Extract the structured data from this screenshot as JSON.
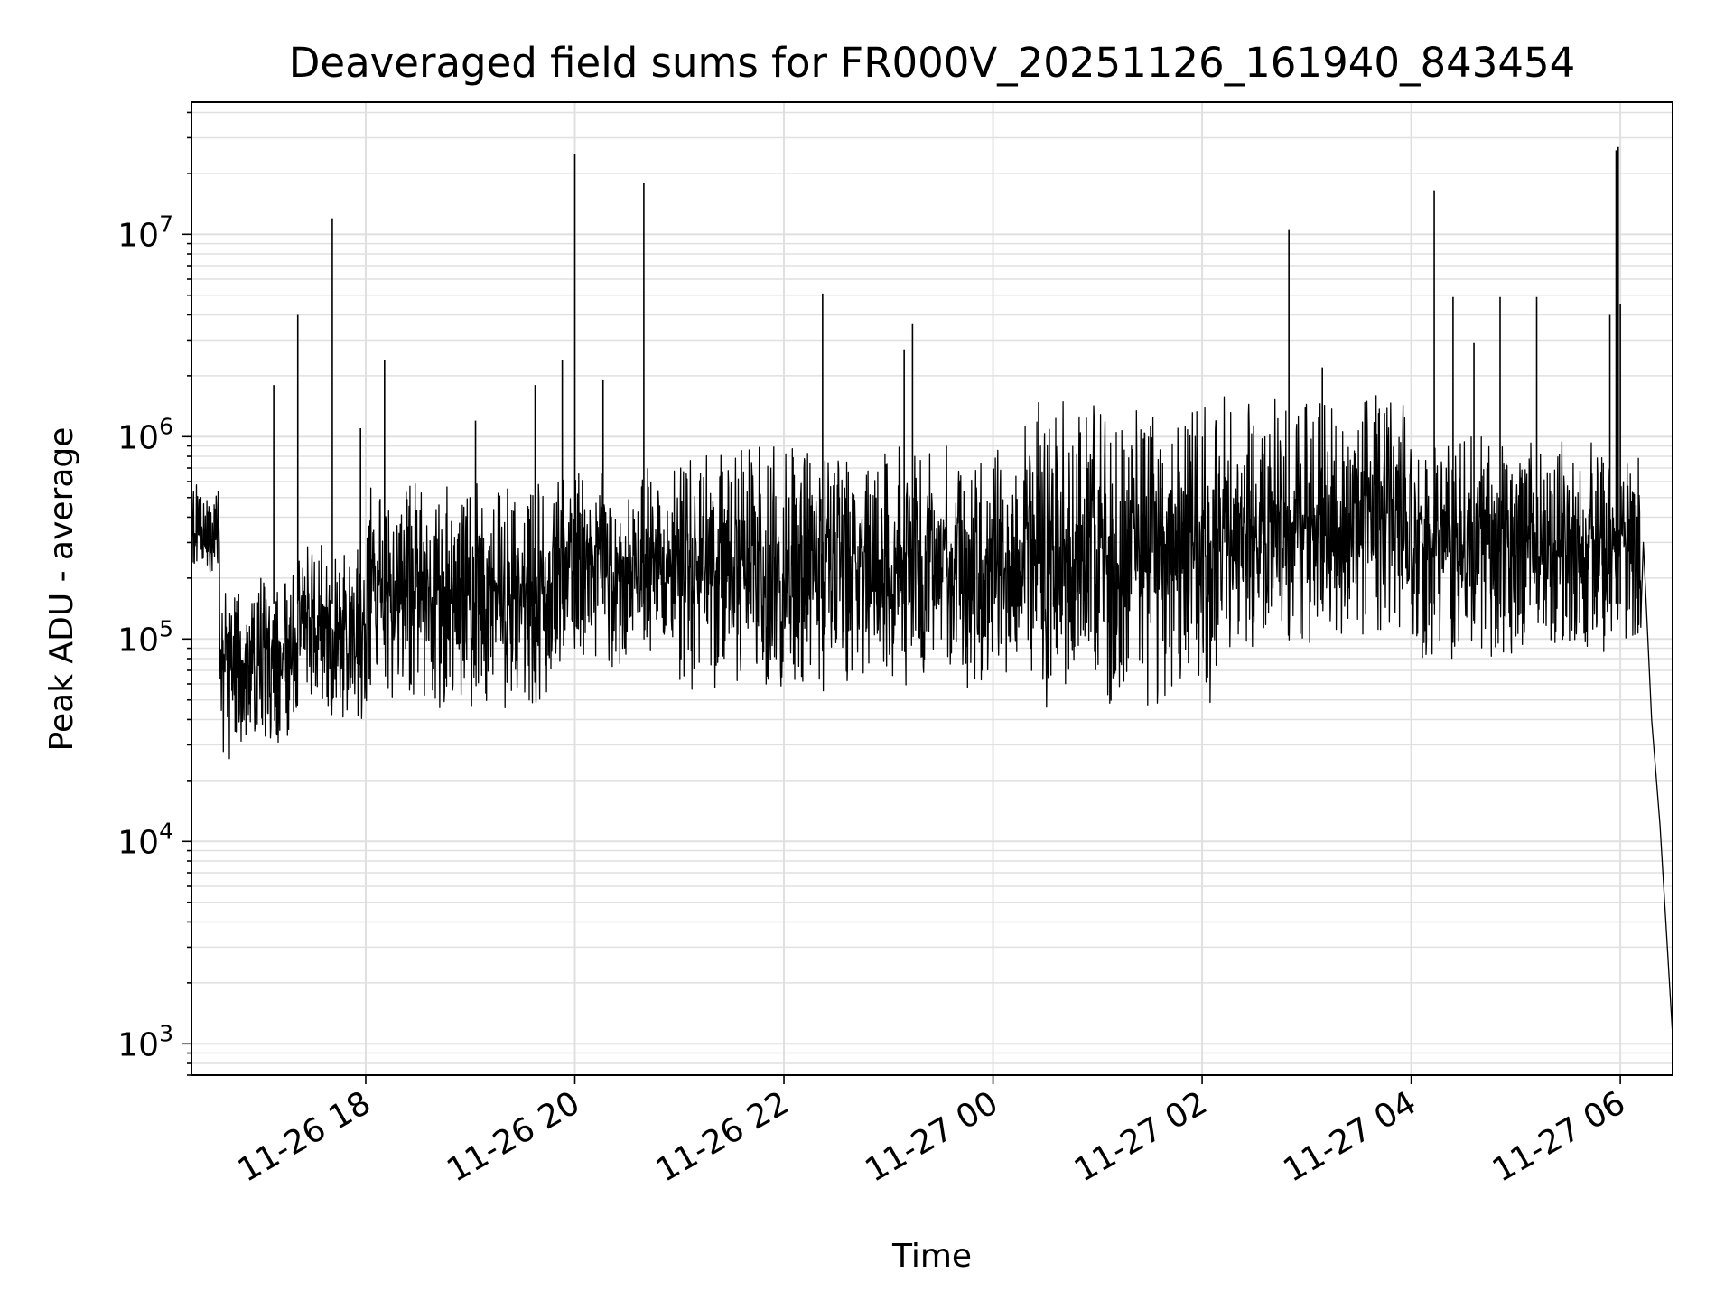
{
  "chart_data": {
    "type": "line",
    "title": "Deaveraged field sums for FR000V_20251126_161940_843454",
    "xlabel": "Time",
    "ylabel": "Peak ADU - average",
    "yscale": "log",
    "ylim": [
      700,
      45000000
    ],
    "xlim_hours": [
      16.333,
      30.5
    ],
    "grid": true,
    "line_color": "#000000",
    "x_ticks": [
      {
        "hour": 18,
        "label": "11-26 18"
      },
      {
        "hour": 20,
        "label": "11-26 20"
      },
      {
        "hour": 22,
        "label": "11-26 22"
      },
      {
        "hour": 24,
        "label": "11-27 00"
      },
      {
        "hour": 26,
        "label": "11-27 02"
      },
      {
        "hour": 28,
        "label": "11-27 04"
      },
      {
        "hour": 30,
        "label": "11-27 06"
      }
    ],
    "y_ticks": [
      {
        "value": 1000,
        "base": "10",
        "exp": "3"
      },
      {
        "value": 10000,
        "base": "10",
        "exp": "4"
      },
      {
        "value": 100000,
        "base": "10",
        "exp": "5"
      },
      {
        "value": 1000000,
        "base": "10",
        "exp": "6"
      },
      {
        "value": 10000000,
        "base": "10",
        "exp": "7"
      }
    ],
    "envelope": {
      "note": "approximate per-segment low/high band (data units, log scale) of the dense noisy series",
      "segments": [
        {
          "h0": 16.33,
          "h1": 16.6,
          "lo": 200000,
          "hi": 600000
        },
        {
          "h0": 16.6,
          "h1": 17.3,
          "lo": 25000,
          "hi": 200000
        },
        {
          "h0": 17.3,
          "h1": 18.0,
          "lo": 40000,
          "hi": 300000
        },
        {
          "h0": 18.0,
          "h1": 19.8,
          "lo": 45000,
          "hi": 600000
        },
        {
          "h0": 19.8,
          "h1": 21.0,
          "lo": 70000,
          "hi": 700000
        },
        {
          "h0": 21.0,
          "h1": 24.3,
          "lo": 55000,
          "hi": 900000
        },
        {
          "h0": 24.3,
          "h1": 26.2,
          "lo": 45000,
          "hi": 1500000
        },
        {
          "h0": 26.2,
          "h1": 28.0,
          "lo": 90000,
          "hi": 1600000
        },
        {
          "h0": 28.0,
          "h1": 30.2,
          "lo": 80000,
          "hi": 1000000
        }
      ],
      "drop": [
        {
          "hour": 30.22,
          "value": 300000
        },
        {
          "hour": 30.3,
          "value": 40000
        },
        {
          "hour": 30.38,
          "value": 12000
        },
        {
          "hour": 30.45,
          "value": 3000
        },
        {
          "hour": 30.5,
          "value": 1100
        }
      ]
    },
    "spikes": [
      {
        "hour": 17.35,
        "value": 4000000
      },
      {
        "hour": 17.68,
        "value": 12000000
      },
      {
        "hour": 17.12,
        "value": 1800000
      },
      {
        "hour": 17.95,
        "value": 1100000
      },
      {
        "hour": 18.18,
        "value": 2400000
      },
      {
        "hour": 19.05,
        "value": 1200000
      },
      {
        "hour": 19.62,
        "value": 1800000
      },
      {
        "hour": 19.88,
        "value": 2400000
      },
      {
        "hour": 20.0,
        "value": 25000000
      },
      {
        "hour": 20.27,
        "value": 1900000
      },
      {
        "hour": 20.66,
        "value": 18000000
      },
      {
        "hour": 22.37,
        "value": 5100000
      },
      {
        "hour": 23.23,
        "value": 3600000
      },
      {
        "hour": 23.15,
        "value": 2700000
      },
      {
        "hour": 26.83,
        "value": 10500000
      },
      {
        "hour": 27.15,
        "value": 2200000
      },
      {
        "hour": 28.22,
        "value": 16500000
      },
      {
        "hour": 28.4,
        "value": 4900000
      },
      {
        "hour": 28.6,
        "value": 2900000
      },
      {
        "hour": 28.85,
        "value": 4900000
      },
      {
        "hour": 29.2,
        "value": 4900000
      },
      {
        "hour": 29.9,
        "value": 4000000
      },
      {
        "hour": 29.96,
        "value": 26000000
      },
      {
        "hour": 29.98,
        "value": 27000000
      },
      {
        "hour": 30.0,
        "value": 4500000
      }
    ]
  }
}
